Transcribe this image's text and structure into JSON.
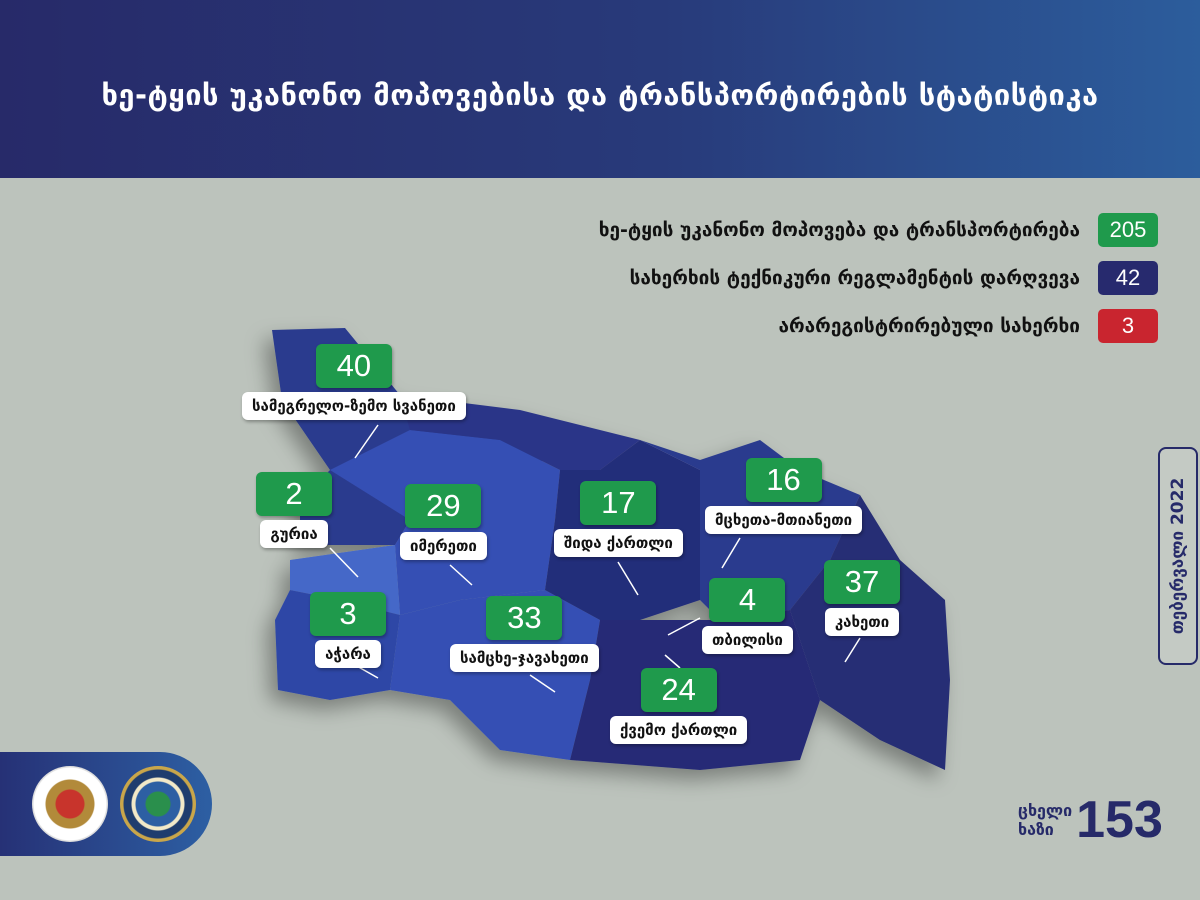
{
  "title": "ხე-ტყის უკანონო მოპოვებისა და ტრანსპორტირების სტატისტიკა",
  "legend": [
    {
      "label": "ხე-ტყის უკანონო მოპოვება და ტრანსპორტირება",
      "value": "205",
      "color": "#1f9a4c"
    },
    {
      "label": "სახერხის ტექნიკური რეგლამენტის დარღვევა",
      "value": "42",
      "color": "#272a6e"
    },
    {
      "label": "არარეგისტრირებული სახერხი",
      "value": "3",
      "color": "#c9252f"
    }
  ],
  "regions": [
    {
      "name": "სამეგრელო-ზემო სვანეთი",
      "value": "40"
    },
    {
      "name": "გურია",
      "value": "2"
    },
    {
      "name": "იმერეთი",
      "value": "29"
    },
    {
      "name": "შიდა ქართლი",
      "value": "17"
    },
    {
      "name": "მცხეთა-მთიანეთი",
      "value": "16"
    },
    {
      "name": "აჭარა",
      "value": "3"
    },
    {
      "name": "სამცხე-ჯავახეთი",
      "value": "33"
    },
    {
      "name": "თბილისი",
      "value": "4"
    },
    {
      "name": "კახეთი",
      "value": "37"
    },
    {
      "name": "ქვემო ქართლი",
      "value": "24"
    }
  ],
  "date": "თებერვალი 2022",
  "hotline": {
    "line1": "ცხელი",
    "line2": "ხაზი",
    "number": "153"
  },
  "colors": {
    "header": "#272a69",
    "value_box": "#1f9a4c",
    "background": "#bcc3bc"
  }
}
